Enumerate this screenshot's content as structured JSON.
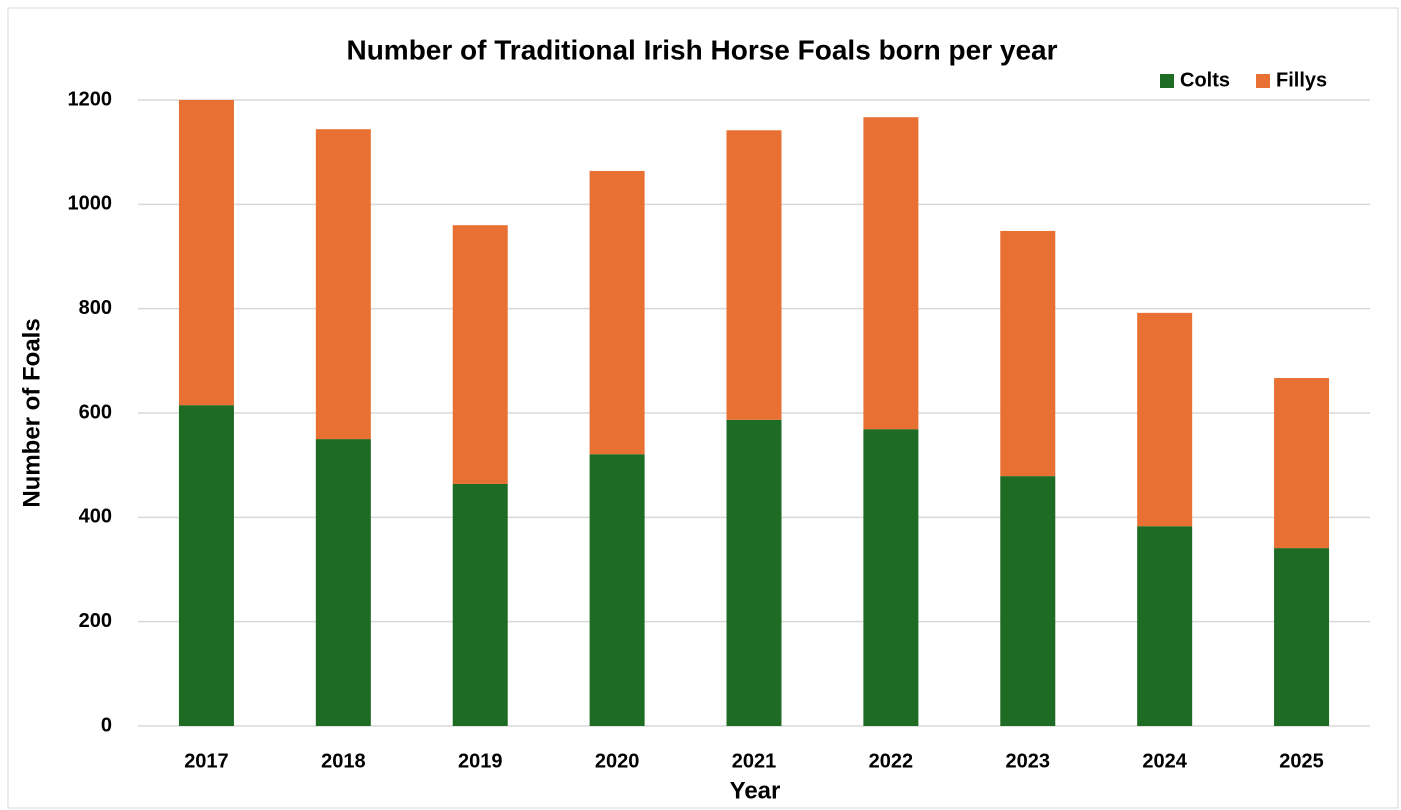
{
  "chart_data": {
    "type": "stacked-bar",
    "title": "Number of Traditional Irish Horse Foals born per year",
    "x_label": "Year",
    "y_label": "Number of Foals",
    "categories": [
      "2017",
      "2018",
      "2019",
      "2020",
      "2021",
      "2022",
      "2023",
      "2024",
      "2025"
    ],
    "series": [
      {
        "name": "Colts",
        "color": "#1e6b23",
        "values": [
          615,
          550,
          464,
          521,
          587,
          569,
          479,
          383,
          341
        ]
      },
      {
        "name": "Fillys",
        "color": "#e87033",
        "values": [
          585,
          594,
          496,
          543,
          555,
          598,
          470,
          409,
          326
        ]
      }
    ],
    "ylim": [
      0,
      1200
    ],
    "yticks": [
      0,
      200,
      400,
      600,
      800,
      1000,
      1200
    ],
    "grid": true,
    "legend": "top-right"
  }
}
